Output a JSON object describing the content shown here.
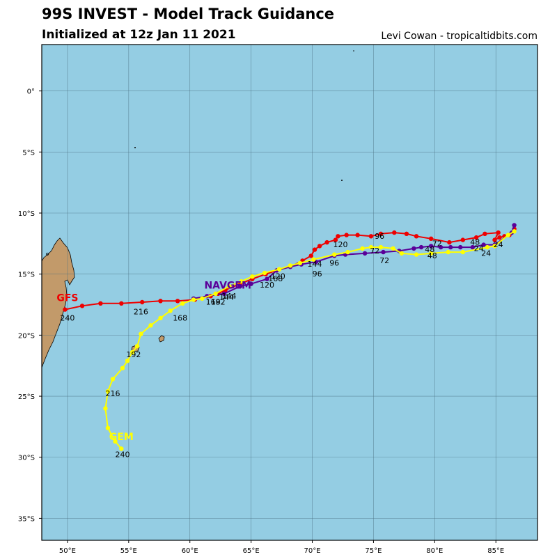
{
  "header": {
    "title": "99S INVEST - Model Track Guidance",
    "subtitle": "Initialized at 12z Jan 11 2021",
    "credit": "Levi Cowan - tropicaltidbits.com"
  },
  "map": {
    "extent": {
      "lon_min": 47.9,
      "lon_max": 88.4,
      "lat_min": -36.8,
      "lat_max": 3.8
    },
    "ocean_color": "#94cde3",
    "land_color": "#c29a6a",
    "lon_ticks": [
      {
        "value": 50,
        "label": "50°E"
      },
      {
        "value": 55,
        "label": "55°E"
      },
      {
        "value": 60,
        "label": "60°E"
      },
      {
        "value": 65,
        "label": "65°E"
      },
      {
        "value": 70,
        "label": "70°E"
      },
      {
        "value": 75,
        "label": "75°E"
      },
      {
        "value": 80,
        "label": "80°E"
      },
      {
        "value": 85,
        "label": "85°E"
      }
    ],
    "lat_ticks": [
      {
        "value": 0,
        "label": "0°"
      },
      {
        "value": -5,
        "label": "5°S"
      },
      {
        "value": -10,
        "label": "10°S"
      },
      {
        "value": -15,
        "label": "15°S"
      },
      {
        "value": -20,
        "label": "20°S"
      },
      {
        "value": -25,
        "label": "25°S"
      },
      {
        "value": -30,
        "label": "30°S"
      },
      {
        "value": -35,
        "label": "35°S"
      }
    ]
  },
  "models": [
    {
      "name": "GFS",
      "color": "#ee0000",
      "name_at": [
        50.0,
        -17.2
      ],
      "track": [
        [
          86.5,
          -11.3
        ],
        [
          86.1,
          -11.8
        ],
        [
          85.7,
          -11.9
        ],
        [
          85.3,
          -12.0
        ],
        [
          84.9,
          -12.2
        ],
        [
          85.2,
          -11.6
        ],
        [
          84.1,
          -11.7
        ],
        [
          83.4,
          -12.0
        ],
        [
          82.3,
          -12.2
        ],
        [
          81.2,
          -12.4
        ],
        [
          79.7,
          -12.1
        ],
        [
          78.5,
          -11.9
        ],
        [
          77.7,
          -11.7
        ],
        [
          76.7,
          -11.6
        ],
        [
          75.6,
          -11.7
        ],
        [
          74.8,
          -11.9
        ],
        [
          73.7,
          -11.8
        ],
        [
          72.8,
          -11.8
        ],
        [
          72.1,
          -11.9
        ],
        [
          71.9,
          -12.2
        ],
        [
          71.2,
          -12.4
        ],
        [
          70.6,
          -12.7
        ],
        [
          70.2,
          -13.0
        ],
        [
          69.9,
          -13.5
        ],
        [
          69.2,
          -13.9
        ],
        [
          68.2,
          -14.4
        ],
        [
          67.1,
          -14.7
        ],
        [
          66.2,
          -15.0
        ],
        [
          65.1,
          -15.4
        ],
        [
          64.1,
          -15.8
        ],
        [
          62.9,
          -16.3
        ],
        [
          62.3,
          -16.6
        ],
        [
          61.7,
          -16.8
        ],
        [
          60.4,
          -17.1
        ],
        [
          59.0,
          -17.2
        ],
        [
          57.6,
          -17.2
        ],
        [
          56.1,
          -17.3
        ],
        [
          54.4,
          -17.4
        ],
        [
          52.7,
          -17.4
        ],
        [
          51.2,
          -17.6
        ],
        [
          49.8,
          -17.9
        ]
      ],
      "labels": [
        {
          "text": "24",
          "at": [
            85.2,
            -12.8
          ]
        },
        {
          "text": "48",
          "at": [
            83.3,
            -12.6
          ]
        },
        {
          "text": "72",
          "at": [
            80.2,
            -12.7
          ]
        },
        {
          "text": "96",
          "at": [
            75.5,
            -12.1
          ]
        },
        {
          "text": "120",
          "at": [
            72.3,
            -12.8
          ]
        },
        {
          "text": "144",
          "at": [
            70.2,
            -14.4
          ]
        },
        {
          "text": "168",
          "at": [
            67.0,
            -15.6
          ]
        },
        {
          "text": "192",
          "at": [
            62.3,
            -17.5
          ]
        },
        {
          "text": "216",
          "at": [
            56.0,
            -18.3
          ]
        },
        {
          "text": "240",
          "at": [
            50.0,
            -18.8
          ]
        }
      ]
    },
    {
      "name": "NAVGEM",
      "color": "#5a0099",
      "name_at": [
        63.1,
        -16.2
      ],
      "track": [
        [
          86.5,
          -11.0
        ],
        [
          86.3,
          -11.6
        ],
        [
          84.9,
          -12.6
        ],
        [
          84.0,
          -12.6
        ],
        [
          83.1,
          -12.8
        ],
        [
          82.1,
          -12.8
        ],
        [
          81.3,
          -12.8
        ],
        [
          80.5,
          -12.8
        ],
        [
          79.7,
          -12.7
        ],
        [
          78.9,
          -12.8
        ],
        [
          78.3,
          -12.9
        ],
        [
          77.1,
          -13.1
        ],
        [
          75.8,
          -13.2
        ],
        [
          74.3,
          -13.3
        ],
        [
          72.7,
          -13.4
        ],
        [
          71.8,
          -13.5
        ],
        [
          70.3,
          -14.0
        ],
        [
          69.1,
          -14.2
        ],
        [
          68.2,
          -14.4
        ],
        [
          67.1,
          -14.7
        ],
        [
          66.3,
          -15.4
        ],
        [
          65.0,
          -15.8
        ],
        [
          64.1,
          -16.0
        ],
        [
          62.8,
          -16.6
        ],
        [
          61.4,
          -16.8
        ],
        [
          60.3,
          -17.0
        ]
      ],
      "labels": [
        {
          "text": "24",
          "at": [
            84.2,
            -13.5
          ]
        },
        {
          "text": "48",
          "at": [
            79.8,
            -13.7
          ]
        },
        {
          "text": "72",
          "at": [
            75.9,
            -14.1
          ]
        },
        {
          "text": "96",
          "at": [
            70.4,
            -15.2
          ]
        },
        {
          "text": "120",
          "at": [
            66.3,
            -16.1
          ]
        },
        {
          "text": "144",
          "at": [
            63.2,
            -17.0
          ]
        },
        {
          "text": "168",
          "at": [
            61.9,
            -17.5
          ]
        }
      ]
    },
    {
      "name": "GEM",
      "color": "#ffff00",
      "name_at": [
        54.4,
        -28.6
      ],
      "track": [
        [
          86.5,
          -11.5
        ],
        [
          86.0,
          -11.8
        ],
        [
          84.9,
          -12.7
        ],
        [
          84.3,
          -12.8
        ],
        [
          82.3,
          -13.2
        ],
        [
          81.1,
          -13.2
        ],
        [
          79.7,
          -13.3
        ],
        [
          78.5,
          -13.4
        ],
        [
          77.3,
          -13.3
        ],
        [
          76.6,
          -12.9
        ],
        [
          75.6,
          -12.8
        ],
        [
          74.8,
          -12.8
        ],
        [
          74.1,
          -12.9
        ],
        [
          72.9,
          -13.2
        ],
        [
          71.8,
          -13.4
        ],
        [
          70.1,
          -13.8
        ],
        [
          69.0,
          -14.1
        ],
        [
          68.2,
          -14.3
        ],
        [
          67.3,
          -14.6
        ],
        [
          66.1,
          -14.9
        ],
        [
          65.1,
          -15.2
        ],
        [
          64.2,
          -15.6
        ],
        [
          63.2,
          -16.0
        ],
        [
          62.1,
          -16.6
        ],
        [
          61.0,
          -17.0
        ],
        [
          60.3,
          -17.1
        ],
        [
          59.4,
          -17.4
        ],
        [
          58.4,
          -18.0
        ],
        [
          57.6,
          -18.6
        ],
        [
          56.8,
          -19.2
        ],
        [
          56.0,
          -19.9
        ],
        [
          55.7,
          -20.9
        ],
        [
          55.3,
          -21.4
        ],
        [
          54.9,
          -22.1
        ],
        [
          54.5,
          -22.7
        ],
        [
          53.7,
          -23.6
        ],
        [
          53.3,
          -24.6
        ],
        [
          53.1,
          -26.0
        ],
        [
          53.3,
          -27.6
        ],
        [
          53.9,
          -28.7
        ],
        [
          54.4,
          -29.3
        ]
      ],
      "labels": [
        {
          "text": "24",
          "at": [
            83.6,
            -13.1
          ]
        },
        {
          "text": "48",
          "at": [
            79.6,
            -13.2
          ]
        },
        {
          "text": "72",
          "at": [
            75.1,
            -13.3
          ]
        },
        {
          "text": "96",
          "at": [
            71.8,
            -14.3
          ]
        },
        {
          "text": "120",
          "at": [
            67.2,
            -15.4
          ]
        },
        {
          "text": "144",
          "at": [
            63.0,
            -17.1
          ]
        },
        {
          "text": "168",
          "at": [
            59.2,
            -18.8
          ]
        },
        {
          "text": "192",
          "at": [
            55.4,
            -21.8
          ]
        },
        {
          "text": "216",
          "at": [
            53.7,
            -25.0
          ]
        },
        {
          "text": "240",
          "at": [
            54.5,
            -30.0
          ]
        }
      ]
    }
  ]
}
